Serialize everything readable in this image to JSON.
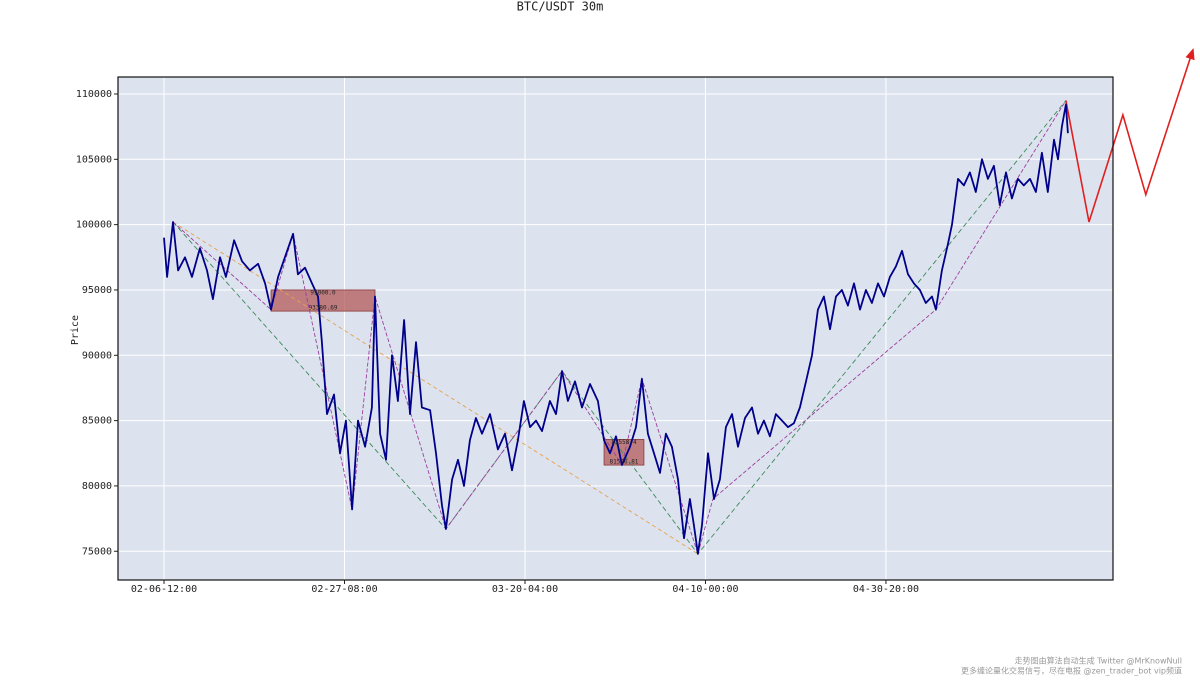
{
  "chart_data": {
    "type": "line",
    "title": "BTC/USDT 30m",
    "y_label": "Price",
    "x": [
      0,
      17,
      50,
      78,
      116,
      155,
      199,
      238,
      271,
      310,
      343,
      388,
      432,
      476,
      521,
      560,
      593,
      632,
      670,
      715,
      742,
      781,
      820,
      853,
      875,
      903,
      942,
      975,
      1008,
      1042,
      1075,
      1114,
      1152,
      1169,
      1197,
      1230,
      1263,
      1296,
      1330,
      1363,
      1396,
      1429,
      1474,
      1507,
      1540,
      1562,
      1596,
      1629,
      1662,
      1695,
      1728,
      1762,
      1806,
      1850,
      1889,
      1928,
      1961,
      1994,
      2028,
      2061,
      2094,
      2138,
      2172,
      2205,
      2238,
      2277,
      2316,
      2360,
      2404,
      2438,
      2471,
      2504,
      2537,
      2582,
      2615,
      2648,
      2681,
      2715,
      2748,
      2781,
      2814,
      2848,
      2881,
      2914,
      2936,
      2958,
      2981,
      3014,
      3047,
      3080,
      3113,
      3147,
      3180,
      3219,
      3258,
      3291,
      3324,
      3357,
      3390,
      3424,
      3457,
      3490,
      3523,
      3557,
      3590,
      3623,
      3656,
      3690,
      3723,
      3756,
      3789,
      3823,
      3856,
      3889,
      3922,
      3956,
      3989,
      4022,
      4055,
      4089,
      4122,
      4155,
      4188,
      4221,
      4255,
      4277,
      4310,
      4343,
      4366,
      4399,
      4432,
      4465,
      4498,
      4532,
      4565,
      4598,
      4631,
      4665,
      4698,
      4731,
      4764,
      4798,
      4831,
      4864,
      4897,
      4931,
      4953,
      4975,
      4997,
      5008
    ],
    "values": [
      99000,
      96000,
      100200,
      96500,
      97500,
      96000,
      98200,
      96500,
      94300,
      97500,
      96000,
      98800,
      97200,
      96500,
      97000,
      95500,
      93500,
      96000,
      97500,
      99300,
      96200,
      96700,
      95500,
      94500,
      91000,
      85500,
      87000,
      82500,
      85000,
      78200,
      85000,
      83000,
      86000,
      94500,
      84000,
      82000,
      90000,
      86500,
      92700,
      85500,
      91000,
      86000,
      85800,
      82500,
      78500,
      76700,
      80500,
      82000,
      80000,
      83500,
      85200,
      84000,
      85500,
      82800,
      84000,
      81200,
      83500,
      86500,
      84500,
      85000,
      84200,
      86500,
      85500,
      88800,
      86500,
      88000,
      86000,
      87800,
      86500,
      83500,
      82500,
      83800,
      81600,
      83000,
      84500,
      88200,
      84000,
      82500,
      81000,
      84000,
      83000,
      80500,
      76000,
      79000,
      77000,
      74800,
      77000,
      82500,
      79000,
      80500,
      84500,
      85500,
      83000,
      85200,
      86000,
      84000,
      85000,
      83800,
      85500,
      85000,
      84500,
      84800,
      86000,
      88000,
      90000,
      93500,
      94500,
      92000,
      94500,
      95000,
      93800,
      95500,
      93500,
      95000,
      94000,
      95500,
      94500,
      96000,
      96800,
      98000,
      96200,
      95500,
      95000,
      94000,
      94500,
      93500,
      96500,
      98500,
      100000,
      103500,
      103000,
      104000,
      102500,
      105000,
      103500,
      104500,
      101500,
      104000,
      102000,
      103500,
      103000,
      103500,
      102500,
      105500,
      102500,
      106500,
      105000,
      107500,
      109200,
      107000
    ],
    "color": "#00008b",
    "lines": [
      {
        "color": "#e8a04c",
        "dash": "4 3",
        "x": [
          50,
          2958
        ],
        "y": [
          100200,
          74800
        ]
      },
      {
        "color": "#3a8a5a",
        "dash": "5 3",
        "x": [
          50,
          1562,
          2205,
          2958,
          4997
        ],
        "y": [
          100200,
          76700,
          88800,
          74800,
          109500
        ]
      },
      {
        "color": "#9a3fa0",
        "dash": "4 2",
        "x": [
          50,
          593,
          715,
          1042,
          1169,
          1562,
          2205,
          2537,
          2648,
          2958,
          3041,
          4277,
          4997
        ],
        "y": [
          100200,
          93500,
          99300,
          78200,
          94500,
          76700,
          88800,
          81600,
          88200,
          74800,
          79000,
          93500,
          109500
        ]
      },
      {
        "color": "#e02020",
        "dash": "none",
        "x": [
          4997,
          5125,
          5313,
          5440,
          5701
        ],
        "y": [
          109500,
          100200,
          108400,
          102300,
          113400
        ]
      }
    ],
    "zones": [
      {
        "x": [
          593,
          1169
        ],
        "high": 95000,
        "high_label": "95000.0",
        "low": 93380.69,
        "low_label": "93380.69",
        "color": "#b35a5a"
      },
      {
        "x": [
          2438,
          2659
        ],
        "high": 83558.4,
        "high_label": "83558.4",
        "low": 81596.81,
        "low_label": "81596.81",
        "color": "#b35a5a"
      }
    ],
    "xlim": [
      -255,
      5258
    ],
    "xticks": [
      {
        "value": 0,
        "label": "02-06-12:00"
      },
      {
        "value": 1000,
        "label": "02-27-08:00"
      },
      {
        "value": 2000,
        "label": "03-20-04:00"
      },
      {
        "value": 3000,
        "label": "04-10-00:00"
      },
      {
        "value": 4000,
        "label": "04-30-20:00"
      }
    ],
    "ylim": [
      72800,
      111300
    ],
    "yticks": [
      75000,
      80000,
      85000,
      90000,
      95000,
      100000,
      105000,
      110000
    ],
    "grid": true,
    "footnotes": [
      "走势图由算法自动生成  Twitter @MrKnowNull",
      "更多缠论量化交易信号，尽在电报 @zen_trader_bot vip频道"
    ]
  }
}
